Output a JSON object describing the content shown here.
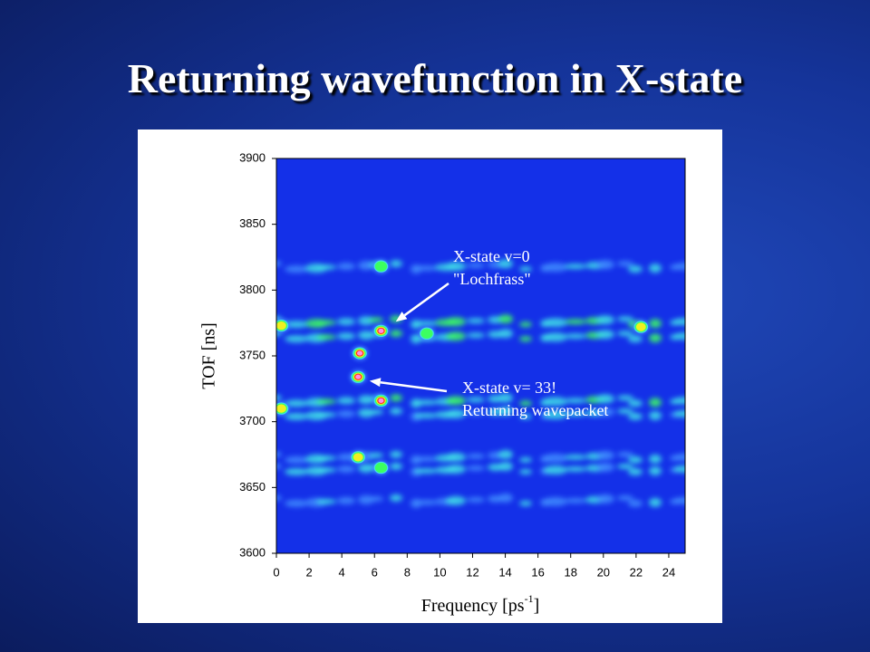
{
  "slide_title": "Returning wavefunction in X-state",
  "chart_data": {
    "type": "heatmap",
    "x_label": "Frequency [ps",
    "x_label_sup": "-1",
    "x_label_end": "]",
    "y_label": "TOF [ns]",
    "xlim": [
      0,
      25
    ],
    "xticks": [
      0,
      2,
      4,
      6,
      8,
      10,
      12,
      14,
      16,
      18,
      20,
      22,
      24
    ],
    "ylim": [
      3600,
      3900
    ],
    "yticks": [
      3600,
      3650,
      3700,
      3750,
      3800,
      3850,
      3900
    ],
    "colormap": [
      "#1a2cf0",
      "#3f8cff",
      "#40e0e8",
      "#3cff60",
      "#f0f020",
      "#ff3020",
      "#ff90e0"
    ],
    "background_color": "#1430e8",
    "bands": [
      {
        "tof": 3818,
        "level": 0.18
      },
      {
        "tof": 3776,
        "level": 0.32
      },
      {
        "tof": 3765,
        "level": 0.28
      },
      {
        "tof": 3716,
        "level": 0.3
      },
      {
        "tof": 3706,
        "level": 0.22
      },
      {
        "tof": 3673,
        "level": 0.16
      },
      {
        "tof": 3664,
        "level": 0.2
      },
      {
        "tof": 3640,
        "level": 0.12
      }
    ],
    "spots": [
      {
        "frequency": 6.4,
        "tof": 3769,
        "level": 1.0
      },
      {
        "frequency": 6.4,
        "tof": 3716,
        "level": 1.0
      },
      {
        "frequency": 5.1,
        "tof": 3752,
        "level": 0.75
      },
      {
        "frequency": 5.0,
        "tof": 3734,
        "level": 0.85
      },
      {
        "frequency": 0.3,
        "tof": 3773,
        "level": 0.55
      },
      {
        "frequency": 0.3,
        "tof": 3710,
        "level": 0.55
      },
      {
        "frequency": 5.0,
        "tof": 3673,
        "level": 0.45
      },
      {
        "frequency": 6.4,
        "tof": 3818,
        "level": 0.35
      },
      {
        "frequency": 6.4,
        "tof": 3665,
        "level": 0.35
      },
      {
        "frequency": 22.3,
        "tof": 3772,
        "level": 0.45
      },
      {
        "frequency": 9.2,
        "tof": 3767,
        "level": 0.4
      }
    ],
    "annotations": [
      {
        "lines": [
          "X-state v=0",
          "\"Lochfrass\""
        ],
        "xy": [
          7.3,
          3776
        ]
      },
      {
        "lines": [
          "X-state v= 33!",
          "Returning wavepacket"
        ],
        "xy": [
          5.7,
          3731
        ]
      }
    ]
  }
}
